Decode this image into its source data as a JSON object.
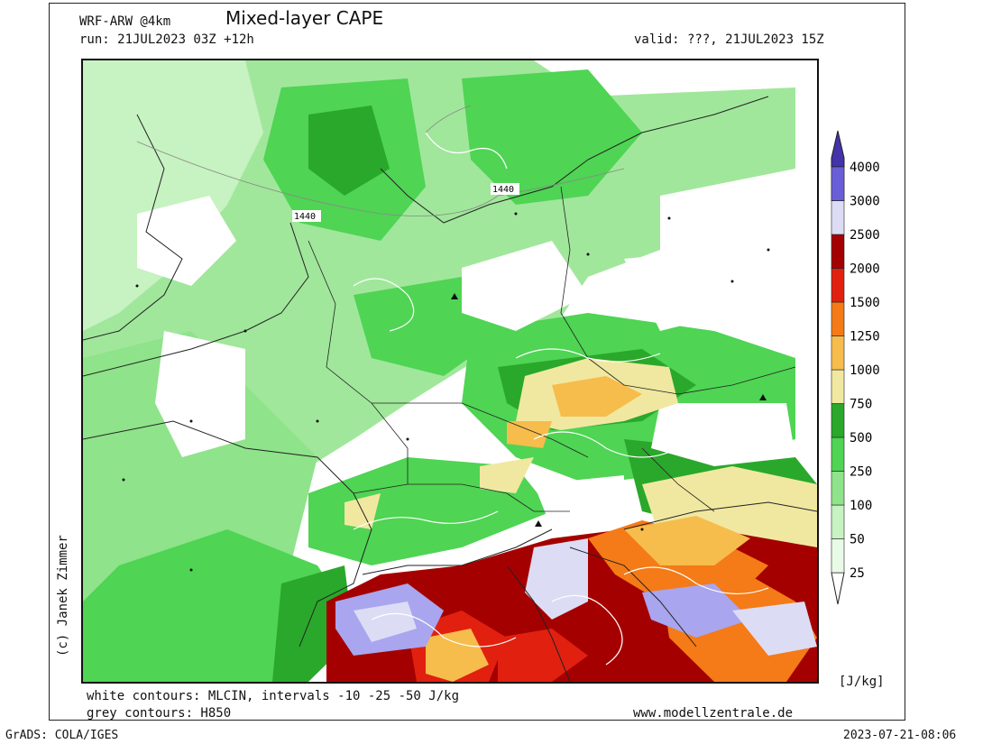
{
  "header": {
    "model": "WRF-ARW @4km",
    "title": "Mixed-layer CAPE",
    "run": "run: 21JUL2023 03Z +12h",
    "valid": "valid: ???, 21JUL2023 15Z"
  },
  "map": {
    "contour_labels": [
      "1440",
      "1440"
    ],
    "credit": "(c) Janek Zimmer"
  },
  "colorbar": {
    "unit": "[J/kg]",
    "levels": [
      {
        "label": "25",
        "color": "#e8fbe6"
      },
      {
        "label": "50",
        "color": "#c7f2c1"
      },
      {
        "label": "100",
        "color": "#8fe38a"
      },
      {
        "label": "250",
        "color": "#4fd454"
      },
      {
        "label": "500",
        "color": "#2aa82b"
      },
      {
        "label": "750",
        "color": "#f0e8a0"
      },
      {
        "label": "1000",
        "color": "#f6bd4c"
      },
      {
        "label": "1250",
        "color": "#f47b17"
      },
      {
        "label": "1500",
        "color": "#e12010"
      },
      {
        "label": "2000",
        "color": "#a50000"
      },
      {
        "label": "2500",
        "color": "#dcdcf4"
      },
      {
        "label": "3000",
        "color": "#a9a5ef"
      },
      {
        "label": "4000",
        "color": "#6a5ed8"
      }
    ],
    "top_color": "#4433aa"
  },
  "footer": {
    "white_contours": "white contours: MLCIN, intervals -10 -25 -50 J/kg",
    "grey_contours": "grey contours: H850",
    "website": "www.modellzentrale.de",
    "grads": "GrADS: COLA/IGES",
    "timestamp": "2023-07-21-08:06"
  }
}
